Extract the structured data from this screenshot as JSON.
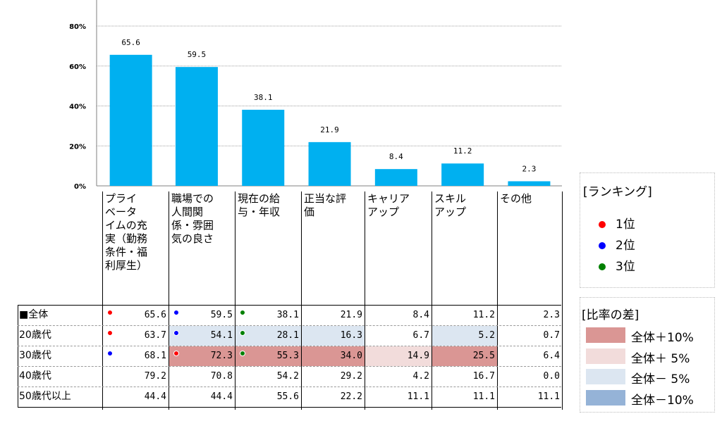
{
  "chart_data": {
    "type": "bar",
    "categories": [
      "プライベートタイムの充実（勤務条件・福利厚生）",
      "職場での人間関係・雰囲気の良さ",
      "現在の給与・年収",
      "正当な評価",
      "キャリアアップ",
      "スキルアップ",
      "その他"
    ],
    "values": [
      65.6,
      59.5,
      38.1,
      21.9,
      8.4,
      11.2,
      2.3
    ],
    "ylim": [
      0,
      90
    ],
    "yticks": [
      "0%",
      "20%",
      "40%",
      "60%",
      "80%"
    ],
    "ytick_values": [
      0,
      20,
      40,
      60,
      80
    ],
    "bar_color": "#00b0f0",
    "data_labels": [
      "65.6",
      "59.5",
      "38.1",
      "21.9",
      "8.4",
      "11.2",
      "2.3"
    ],
    "table": {
      "rows": [
        {
          "label": "■全体",
          "values": [
            "65.6",
            "59.5",
            "38.1",
            "21.9",
            "8.4",
            "11.2",
            "2.3"
          ],
          "highlight": [
            null,
            null,
            null,
            null,
            null,
            null,
            null
          ],
          "rank": [
            1,
            2,
            3,
            null,
            null,
            null,
            null
          ]
        },
        {
          "label": "20歳代",
          "values": [
            "63.7",
            "54.1",
            "28.1",
            "16.3",
            "6.7",
            "5.2",
            "0.7"
          ],
          "highlight": [
            null,
            "minus5",
            "minus5",
            "minus5",
            null,
            "minus5",
            null
          ],
          "rank": [
            1,
            2,
            3,
            null,
            null,
            null,
            null
          ]
        },
        {
          "label": "30歳代",
          "values": [
            "68.1",
            "72.3",
            "55.3",
            "34.0",
            "14.9",
            "25.5",
            "6.4"
          ],
          "highlight": [
            null,
            "plus10",
            "plus10",
            "plus10",
            "plus5",
            "plus10",
            null
          ],
          "rank": [
            2,
            1,
            3,
            null,
            null,
            null,
            null
          ]
        },
        {
          "label": "40歳代",
          "values": [
            "79.2",
            "70.8",
            "54.2",
            "29.2",
            "4.2",
            "16.7",
            "0.0"
          ],
          "highlight": [
            null,
            null,
            null,
            null,
            null,
            null,
            null
          ],
          "rank": [
            null,
            null,
            null,
            null,
            null,
            null,
            null
          ]
        },
        {
          "label": "50歳代以上",
          "values": [
            "44.4",
            "44.4",
            "55.6",
            "22.2",
            "11.1",
            "11.1",
            "11.1"
          ],
          "highlight": [
            null,
            null,
            null,
            null,
            null,
            null,
            null
          ],
          "rank": [
            null,
            null,
            null,
            null,
            null,
            null,
            null
          ]
        }
      ]
    }
  },
  "category_lines": [
    [
      "プライ",
      "ベータ",
      "イムの充",
      "実（勤務",
      "条件・福",
      "利厚生）"
    ],
    [
      "職場での",
      "人間関",
      "係・雰囲",
      "気の良さ"
    ],
    [
      "現在の給",
      "与・年収"
    ],
    [
      "正当な評",
      "価"
    ],
    [
      "キャリア",
      "アップ"
    ],
    [
      "スキル",
      "アップ"
    ],
    [
      "その他"
    ]
  ],
  "legend_rank": {
    "title": "[ランキング]",
    "items": [
      {
        "label": "1位",
        "color": "#ff0000"
      },
      {
        "label": "2位",
        "color": "#0000ff"
      },
      {
        "label": "3位",
        "color": "#008000"
      }
    ]
  },
  "legend_diff": {
    "title": "[比率の差]",
    "items": [
      {
        "label": "全体＋10%",
        "color": "#da9694",
        "key": "plus10"
      },
      {
        "label": "全体＋ 5%",
        "color": "#f2dcdb",
        "key": "plus5"
      },
      {
        "label": "全体－ 5%",
        "color": "#dce6f1",
        "key": "minus5"
      },
      {
        "label": "全体－10%",
        "color": "#95b3d7",
        "key": "minus10"
      }
    ]
  }
}
